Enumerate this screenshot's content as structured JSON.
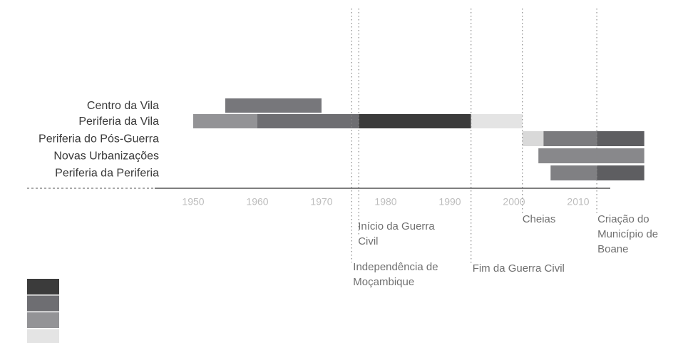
{
  "chart_data": {
    "type": "timeline",
    "xlim": [
      1944,
      2015
    ],
    "xticks": [
      1950,
      1960,
      1970,
      1980,
      1990,
      2000,
      2010
    ],
    "rows": [
      {
        "name": "Centro da Vila",
        "segments": [
          {
            "start": 1955,
            "end": 1970,
            "color": "#77777b"
          }
        ]
      },
      {
        "name": "Periferia da Vila",
        "segments": [
          {
            "start": 1950,
            "end": 1960,
            "color": "#939396"
          },
          {
            "start": 1960,
            "end": 1975.8,
            "color": "#6e6e72"
          },
          {
            "start": 1975.8,
            "end": 1993.3,
            "color": "#3b3b3b"
          },
          {
            "start": 1993.3,
            "end": 2001.3,
            "color": "#e4e4e4"
          }
        ]
      },
      {
        "name": "Periferia do Pós-Guerra",
        "segments": [
          {
            "start": 2001.3,
            "end": 2004.6,
            "color": "#d9d9d9"
          },
          {
            "start": 2004.6,
            "end": 2012.9,
            "color": "#7b7b7e"
          },
          {
            "start": 2012.9,
            "end": 2020.3,
            "color": "#5e5e61"
          }
        ]
      },
      {
        "name": "Novas Urbanizações",
        "segments": [
          {
            "start": 2003.8,
            "end": 2020.3,
            "color": "#88888b"
          }
        ]
      },
      {
        "name": "Periferia da Periferia",
        "segments": [
          {
            "start": 2005.7,
            "end": 2012.9,
            "color": "#808083"
          },
          {
            "start": 2012.9,
            "end": 2020.3,
            "color": "#5e5e61"
          }
        ]
      }
    ],
    "events": [
      {
        "x": 1974.7,
        "label": [
          "Independência de",
          "Moçambique"
        ]
      },
      {
        "x": 1975.8,
        "label": [
          "Início da Guerra",
          "Civil"
        ]
      },
      {
        "x": 1993.3,
        "label": [
          "Fim da Guerra Civil"
        ]
      },
      {
        "x": 2001.3,
        "label": [
          "Cheias"
        ]
      },
      {
        "x": 2012.9,
        "label": [
          "Criação do",
          "Município de",
          "Boane"
        ]
      }
    ],
    "legend_colors": [
      "#3b3b3b",
      "#6e6e72",
      "#939396",
      "#e4e4e4"
    ]
  }
}
